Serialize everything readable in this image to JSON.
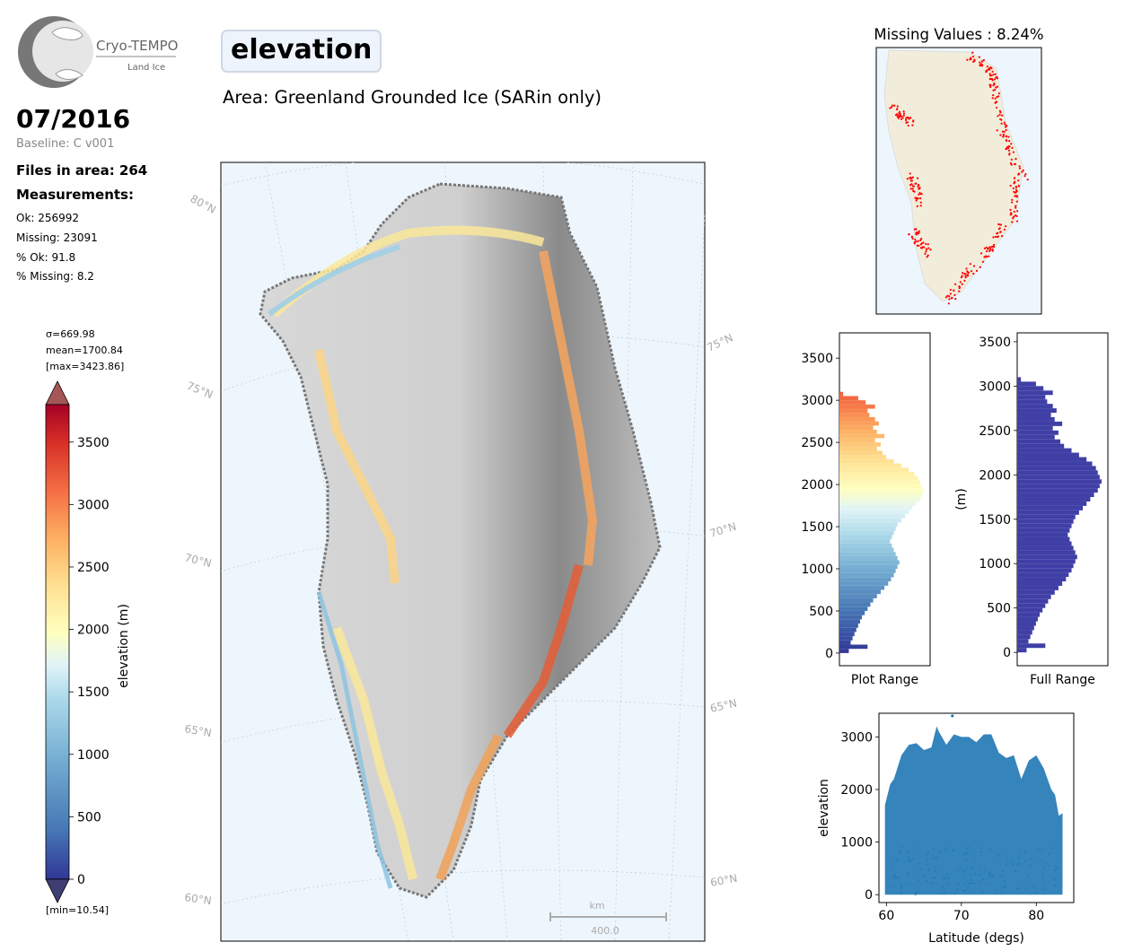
{
  "logo": {
    "name": "Cryo-TEMPO",
    "sub": "Land Ice"
  },
  "date": "07/2016",
  "baseline": "Baseline: C v001",
  "files": "Files in area: 264",
  "measurements": {
    "heading": "Measurements:",
    "ok": "Ok: 256992",
    "missing": "Missing: 23091",
    "pct_ok": "% Ok: 91.8",
    "pct_missing": "% Missing: 8.2"
  },
  "title": "elevation",
  "area": "Area: Greenland Grounded Ice (SARin only)",
  "colorbar": {
    "sigma": "σ=669.98",
    "mean": "mean=1700.84",
    "max": "[max=3423.86]",
    "min": "[min=10.54]",
    "label": "elevation (m)",
    "ticks": [
      "0",
      "500",
      "1000",
      "1500",
      "2000",
      "2500",
      "3000",
      "3500"
    ]
  },
  "map": {
    "lat_labels_left": [
      "80°N",
      "75°N",
      "70°N",
      "65°N",
      "60°N"
    ],
    "lat_labels_right": [
      "75°N",
      "70°N",
      "65°N",
      "60°N"
    ],
    "scale_unit": "km",
    "scale_value": "400.0"
  },
  "missing_map": {
    "title": "Missing Values : 8.24%"
  },
  "colors": {
    "ocean": "#eef6fd",
    "land": "#f2eddb",
    "missing": "#ff0000",
    "hist_full": "#3f3fa6",
    "scatter": "#1f77b4"
  },
  "chart_data": [
    {
      "type": "bar",
      "name": "Plot Range",
      "xlabel": "Plot Range",
      "orientation": "horizontal",
      "bin_width": 50,
      "ylim": [
        -150,
        3800
      ],
      "yticks": [
        0,
        500,
        1000,
        1500,
        2000,
        2500,
        3000,
        3500
      ],
      "bins_y": [
        0,
        50,
        100,
        150,
        200,
        250,
        300,
        350,
        400,
        450,
        500,
        550,
        600,
        650,
        700,
        750,
        800,
        850,
        900,
        950,
        1000,
        1050,
        1100,
        1150,
        1200,
        1250,
        1300,
        1350,
        1400,
        1450,
        1500,
        1550,
        1600,
        1650,
        1700,
        1750,
        1800,
        1850,
        1900,
        1950,
        2000,
        2050,
        2100,
        2150,
        2200,
        2250,
        2300,
        2350,
        2400,
        2450,
        2500,
        2550,
        2600,
        2650,
        2700,
        2750,
        2800,
        2850,
        2900,
        2950,
        3000,
        3050
      ],
      "values": [
        10,
        30,
        12,
        14,
        16,
        18,
        20,
        22,
        24,
        27,
        30,
        33,
        36,
        40,
        44,
        48,
        52,
        55,
        58,
        60,
        62,
        64,
        62,
        60,
        58,
        56,
        54,
        56,
        58,
        60,
        62,
        66,
        70,
        74,
        78,
        82,
        86,
        88,
        90,
        88,
        86,
        84,
        80,
        74,
        66,
        58,
        50,
        46,
        40,
        44,
        38,
        48,
        40,
        36,
        42,
        38,
        32,
        30,
        38,
        28,
        20,
        4
      ]
    },
    {
      "type": "bar",
      "name": "Full Range",
      "xlabel": "Full Range",
      "ylabel": "(m)",
      "orientation": "horizontal",
      "bin_width": 50,
      "ylim": [
        -150,
        3600
      ],
      "yticks": [
        0,
        500,
        1000,
        1500,
        2000,
        2500,
        3000,
        3500
      ],
      "bins_y": [
        0,
        50,
        100,
        150,
        200,
        250,
        300,
        350,
        400,
        450,
        500,
        550,
        600,
        650,
        700,
        750,
        800,
        850,
        900,
        950,
        1000,
        1050,
        1100,
        1150,
        1200,
        1250,
        1300,
        1350,
        1400,
        1450,
        1500,
        1550,
        1600,
        1650,
        1700,
        1750,
        1800,
        1850,
        1900,
        1950,
        2000,
        2050,
        2100,
        2150,
        2200,
        2250,
        2300,
        2350,
        2400,
        2450,
        2500,
        2550,
        2600,
        2650,
        2700,
        2750,
        2800,
        2850,
        2900,
        2950,
        3000,
        3050
      ],
      "values": [
        10,
        30,
        12,
        14,
        16,
        18,
        20,
        22,
        24,
        27,
        30,
        33,
        36,
        40,
        44,
        48,
        52,
        55,
        58,
        60,
        62,
        64,
        62,
        60,
        58,
        56,
        54,
        56,
        58,
        60,
        62,
        66,
        70,
        74,
        78,
        82,
        86,
        88,
        90,
        88,
        86,
        84,
        80,
        74,
        66,
        58,
        50,
        46,
        40,
        44,
        38,
        48,
        40,
        36,
        42,
        38,
        32,
        30,
        38,
        28,
        20,
        4
      ]
    },
    {
      "type": "scatter",
      "xlabel": "Latitude (degs)",
      "ylabel": "elevation",
      "xlim": [
        59,
        85
      ],
      "ylim": [
        -150,
        3450
      ],
      "xticks": [
        60,
        70,
        80
      ],
      "yticks": [
        0,
        1000,
        2000,
        3000
      ],
      "envelope": {
        "lat": [
          59.8,
          60.5,
          61,
          62,
          63,
          64,
          65,
          66,
          66.7,
          67,
          68,
          69,
          70,
          71,
          72,
          73,
          74,
          75,
          76,
          77,
          78,
          79,
          80,
          81,
          82,
          82.5,
          83,
          83.5
        ],
        "top": [
          1700,
          2100,
          2200,
          2650,
          2850,
          2880,
          2750,
          2800,
          3200,
          3100,
          2850,
          3050,
          3000,
          3000,
          2900,
          3050,
          3050,
          2700,
          2600,
          2650,
          2200,
          2550,
          2650,
          2400,
          2000,
          1900,
          1500,
          1550
        ]
      },
      "outlier": {
        "lat": 68.8,
        "elev": 3400
      }
    }
  ]
}
